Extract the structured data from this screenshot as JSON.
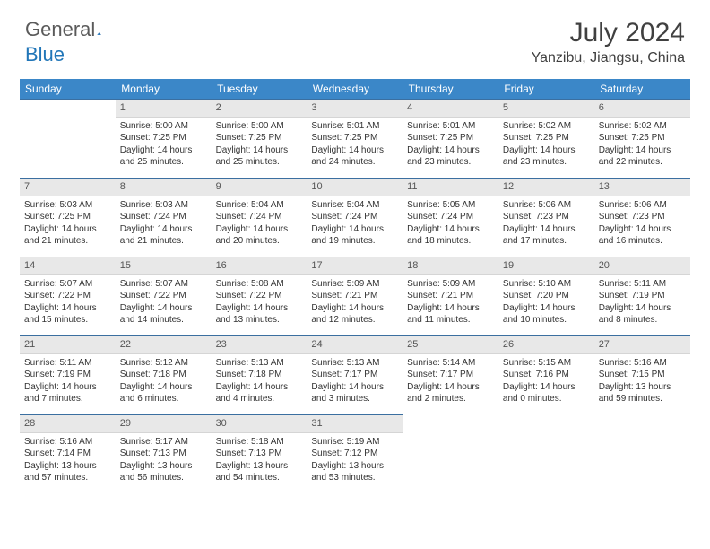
{
  "brand": {
    "name_a": "General",
    "name_b": "Blue"
  },
  "title": "July 2024",
  "location": "Yanzibu, Jiangsu, China",
  "colors": {
    "header_bg": "#3b87c8",
    "header_text": "#ffffff",
    "daynum_bg": "#e8e8e8",
    "divider": "#3b6fa0",
    "brand_gray": "#5a5a5a",
    "brand_blue": "#2176b8"
  },
  "weekdays": [
    "Sunday",
    "Monday",
    "Tuesday",
    "Wednesday",
    "Thursday",
    "Friday",
    "Saturday"
  ],
  "grid": [
    [
      null,
      {
        "n": "1",
        "sr": "5:00 AM",
        "ss": "7:25 PM",
        "dl": "14 hours and 25 minutes."
      },
      {
        "n": "2",
        "sr": "5:00 AM",
        "ss": "7:25 PM",
        "dl": "14 hours and 25 minutes."
      },
      {
        "n": "3",
        "sr": "5:01 AM",
        "ss": "7:25 PM",
        "dl": "14 hours and 24 minutes."
      },
      {
        "n": "4",
        "sr": "5:01 AM",
        "ss": "7:25 PM",
        "dl": "14 hours and 23 minutes."
      },
      {
        "n": "5",
        "sr": "5:02 AM",
        "ss": "7:25 PM",
        "dl": "14 hours and 23 minutes."
      },
      {
        "n": "6",
        "sr": "5:02 AM",
        "ss": "7:25 PM",
        "dl": "14 hours and 22 minutes."
      }
    ],
    [
      {
        "n": "7",
        "sr": "5:03 AM",
        "ss": "7:25 PM",
        "dl": "14 hours and 21 minutes."
      },
      {
        "n": "8",
        "sr": "5:03 AM",
        "ss": "7:24 PM",
        "dl": "14 hours and 21 minutes."
      },
      {
        "n": "9",
        "sr": "5:04 AM",
        "ss": "7:24 PM",
        "dl": "14 hours and 20 minutes."
      },
      {
        "n": "10",
        "sr": "5:04 AM",
        "ss": "7:24 PM",
        "dl": "14 hours and 19 minutes."
      },
      {
        "n": "11",
        "sr": "5:05 AM",
        "ss": "7:24 PM",
        "dl": "14 hours and 18 minutes."
      },
      {
        "n": "12",
        "sr": "5:06 AM",
        "ss": "7:23 PM",
        "dl": "14 hours and 17 minutes."
      },
      {
        "n": "13",
        "sr": "5:06 AM",
        "ss": "7:23 PM",
        "dl": "14 hours and 16 minutes."
      }
    ],
    [
      {
        "n": "14",
        "sr": "5:07 AM",
        "ss": "7:22 PM",
        "dl": "14 hours and 15 minutes."
      },
      {
        "n": "15",
        "sr": "5:07 AM",
        "ss": "7:22 PM",
        "dl": "14 hours and 14 minutes."
      },
      {
        "n": "16",
        "sr": "5:08 AM",
        "ss": "7:22 PM",
        "dl": "14 hours and 13 minutes."
      },
      {
        "n": "17",
        "sr": "5:09 AM",
        "ss": "7:21 PM",
        "dl": "14 hours and 12 minutes."
      },
      {
        "n": "18",
        "sr": "5:09 AM",
        "ss": "7:21 PM",
        "dl": "14 hours and 11 minutes."
      },
      {
        "n": "19",
        "sr": "5:10 AM",
        "ss": "7:20 PM",
        "dl": "14 hours and 10 minutes."
      },
      {
        "n": "20",
        "sr": "5:11 AM",
        "ss": "7:19 PM",
        "dl": "14 hours and 8 minutes."
      }
    ],
    [
      {
        "n": "21",
        "sr": "5:11 AM",
        "ss": "7:19 PM",
        "dl": "14 hours and 7 minutes."
      },
      {
        "n": "22",
        "sr": "5:12 AM",
        "ss": "7:18 PM",
        "dl": "14 hours and 6 minutes."
      },
      {
        "n": "23",
        "sr": "5:13 AM",
        "ss": "7:18 PM",
        "dl": "14 hours and 4 minutes."
      },
      {
        "n": "24",
        "sr": "5:13 AM",
        "ss": "7:17 PM",
        "dl": "14 hours and 3 minutes."
      },
      {
        "n": "25",
        "sr": "5:14 AM",
        "ss": "7:17 PM",
        "dl": "14 hours and 2 minutes."
      },
      {
        "n": "26",
        "sr": "5:15 AM",
        "ss": "7:16 PM",
        "dl": "14 hours and 0 minutes."
      },
      {
        "n": "27",
        "sr": "5:16 AM",
        "ss": "7:15 PM",
        "dl": "13 hours and 59 minutes."
      }
    ],
    [
      {
        "n": "28",
        "sr": "5:16 AM",
        "ss": "7:14 PM",
        "dl": "13 hours and 57 minutes."
      },
      {
        "n": "29",
        "sr": "5:17 AM",
        "ss": "7:13 PM",
        "dl": "13 hours and 56 minutes."
      },
      {
        "n": "30",
        "sr": "5:18 AM",
        "ss": "7:13 PM",
        "dl": "13 hours and 54 minutes."
      },
      {
        "n": "31",
        "sr": "5:19 AM",
        "ss": "7:12 PM",
        "dl": "13 hours and 53 minutes."
      },
      null,
      null,
      null
    ]
  ],
  "labels": {
    "sunrise": "Sunrise:",
    "sunset": "Sunset:",
    "daylight": "Daylight:"
  }
}
